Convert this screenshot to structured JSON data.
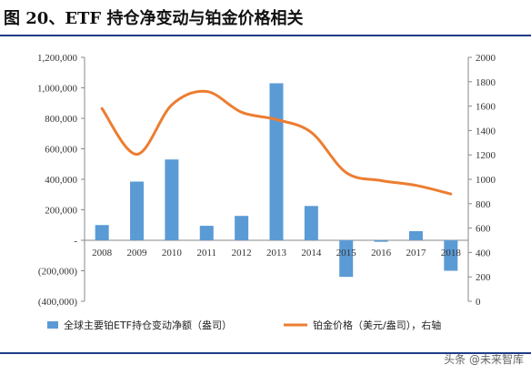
{
  "title": "图 20、ETF 持仓净变动与铂金价格相关",
  "watermark": "头条 @未来智库",
  "colors": {
    "bar": "#5b9bd5",
    "line": "#ed7d31",
    "rule": "#1f3c88"
  },
  "chart_data": {
    "type": "bar+line",
    "categories": [
      "2008",
      "2009",
      "2010",
      "2011",
      "2012",
      "2013",
      "2014",
      "2015",
      "2016",
      "2017",
      "2018"
    ],
    "series": [
      {
        "name": "全球主要铂ETF持仓变动净额（盎司）",
        "type": "bar",
        "axis": "left",
        "values": [
          100000,
          385000,
          530000,
          95000,
          160000,
          1030000,
          225000,
          -240000,
          -10000,
          60000,
          -200000
        ]
      },
      {
        "name": "铂金价格（美元/盎司），右轴",
        "type": "line",
        "axis": "right",
        "values": [
          1580,
          1205,
          1610,
          1720,
          1550,
          1490,
          1385,
          1055,
          990,
          950,
          880
        ]
      }
    ],
    "y_left": {
      "min": -400000,
      "max": 1200000,
      "step": 200000,
      "tick_labels": [
        "(400,000)",
        "(200,000)",
        "-",
        "200,000",
        "400,000",
        "600,000",
        "800,000",
        "1,000,000",
        "1,200,000"
      ]
    },
    "y_right": {
      "min": 0,
      "max": 2000,
      "step": 200,
      "tick_labels": [
        "0",
        "200",
        "400",
        "600",
        "800",
        "1000",
        "1200",
        "1400",
        "1600",
        "1800",
        "2000"
      ]
    },
    "legend": {
      "position": "bottom",
      "labels": [
        "全球主要铂ETF持仓变动净额（盎司）",
        "铂金价格（美元/盎司），右轴"
      ]
    },
    "grid": false
  }
}
